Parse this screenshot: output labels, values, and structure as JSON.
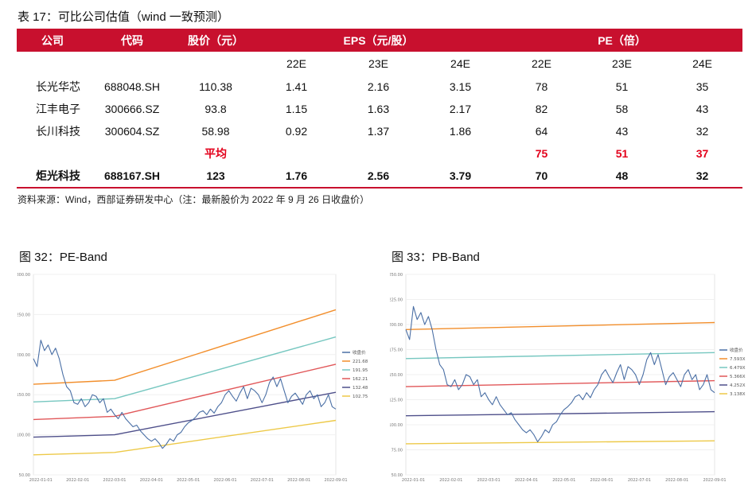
{
  "table": {
    "title": "表 17：可比公司估值（wind 一致预测）",
    "headers": {
      "company": "公司",
      "code": "代码",
      "price": "股价（元）",
      "eps": "EPS（元/股）",
      "pe": "PE（倍）"
    },
    "years": [
      "22E",
      "23E",
      "24E"
    ],
    "rows": [
      {
        "company": "长光华芯",
        "code": "688048.SH",
        "price": "110.38",
        "eps": [
          "1.41",
          "2.16",
          "3.15"
        ],
        "pe": [
          "78",
          "51",
          "35"
        ]
      },
      {
        "company": "江丰电子",
        "code": "300666.SZ",
        "price": "93.8",
        "eps": [
          "1.15",
          "1.63",
          "2.17"
        ],
        "pe": [
          "82",
          "58",
          "43"
        ]
      },
      {
        "company": "长川科技",
        "code": "300604.SZ",
        "price": "58.98",
        "eps": [
          "0.92",
          "1.37",
          "1.86"
        ],
        "pe": [
          "64",
          "43",
          "32"
        ]
      }
    ],
    "average": {
      "label": "平均",
      "pe": [
        "75",
        "51",
        "37"
      ]
    },
    "target": {
      "company": "炬光科技",
      "code": "688167.SH",
      "price": "123",
      "eps": [
        "1.76",
        "2.56",
        "3.79"
      ],
      "pe": [
        "70",
        "48",
        "32"
      ]
    },
    "source": "资料来源：Wind，西部证券研发中心（注：最新股价为 2022 年 9 月 26 日收盘价）"
  },
  "chart_data": [
    {
      "type": "line",
      "title": "图 32：PE-Band",
      "ylim": [
        50,
        300
      ],
      "yticks": [
        "300.00",
        "250.00",
        "200.00",
        "150.00",
        "100.00",
        "50.00"
      ],
      "x_range": [
        0,
        8.2
      ],
      "xticks": [
        {
          "pos": 0.2,
          "label": "2022-01-01"
        },
        {
          "pos": 1.2,
          "label": "2022-02-01"
        },
        {
          "pos": 2.2,
          "label": "2022-03-01"
        },
        {
          "pos": 3.2,
          "label": "2022-04-01"
        },
        {
          "pos": 4.2,
          "label": "2022-05-01"
        },
        {
          "pos": 5.2,
          "label": "2022-06-01"
        },
        {
          "pos": 6.2,
          "label": "2022-07-01"
        },
        {
          "pos": 7.2,
          "label": "2022-08-01"
        },
        {
          "pos": 8.2,
          "label": "2022-09-01"
        }
      ],
      "series": [
        {
          "name": "收盘价",
          "color": "#4a6fa5",
          "x": [
            0.0,
            0.1,
            0.2,
            0.3,
            0.4,
            0.5,
            0.6,
            0.7,
            0.8,
            0.9,
            1.0,
            1.1,
            1.2,
            1.3,
            1.4,
            1.5,
            1.6,
            1.7,
            1.8,
            1.9,
            2.0,
            2.1,
            2.2,
            2.3,
            2.4,
            2.5,
            2.6,
            2.7,
            2.8,
            2.9,
            3.0,
            3.1,
            3.2,
            3.3,
            3.4,
            3.5,
            3.6,
            3.7,
            3.8,
            3.9,
            4.0,
            4.1,
            4.2,
            4.3,
            4.4,
            4.5,
            4.6,
            4.7,
            4.8,
            4.9,
            5.0,
            5.1,
            5.2,
            5.3,
            5.4,
            5.5,
            5.6,
            5.7,
            5.8,
            5.9,
            6.0,
            6.1,
            6.2,
            6.3,
            6.4,
            6.5,
            6.6,
            6.7,
            6.8,
            6.9,
            7.0,
            7.1,
            7.2,
            7.3,
            7.4,
            7.5,
            7.6,
            7.7,
            7.8,
            7.9,
            8.0,
            8.1,
            8.2
          ],
          "values": [
            195,
            185,
            218,
            205,
            212,
            200,
            208,
            195,
            175,
            160,
            155,
            140,
            138,
            145,
            135,
            140,
            150,
            148,
            140,
            145,
            128,
            132,
            125,
            120,
            128,
            120,
            115,
            110,
            112,
            105,
            100,
            95,
            92,
            95,
            90,
            83,
            88,
            95,
            92,
            100,
            103,
            110,
            115,
            118,
            122,
            128,
            130,
            125,
            132,
            127,
            135,
            140,
            150,
            155,
            148,
            142,
            152,
            160,
            145,
            158,
            155,
            150,
            140,
            150,
            165,
            172,
            160,
            170,
            155,
            140,
            148,
            152,
            145,
            138,
            150,
            155,
            145,
            150,
            135,
            140,
            150,
            135,
            132
          ]
        },
        {
          "name": "221.681X",
          "color": "#f28e2b",
          "x": [
            0,
            2.2,
            8.2
          ],
          "values": [
            163,
            168,
            256
          ]
        },
        {
          "name": "191.950X",
          "color": "#76c7c0",
          "x": [
            0,
            2.2,
            8.2
          ],
          "values": [
            141,
            145,
            222
          ]
        },
        {
          "name": "162.219X",
          "color": "#e15759",
          "x": [
            0,
            2.2,
            8.2
          ],
          "values": [
            119,
            123,
            188
          ]
        },
        {
          "name": "132.488X",
          "color": "#4e4f8a",
          "x": [
            0,
            2.2,
            8.2
          ],
          "values": [
            97,
            100,
            153
          ]
        },
        {
          "name": "102.757X",
          "color": "#edc948",
          "x": [
            0,
            2.2,
            8.2
          ],
          "values": [
            75,
            78,
            118
          ]
        }
      ]
    },
    {
      "type": "line",
      "title": "图 33：PB-Band",
      "ylim": [
        50,
        250
      ],
      "yticks": [
        "250.00",
        "225.00",
        "200.00",
        "175.00",
        "150.00",
        "125.00",
        "100.00",
        "75.00",
        "50.00"
      ],
      "x_range": [
        0,
        8.2
      ],
      "xticks": [
        {
          "pos": 0.2,
          "label": "2022-01-01"
        },
        {
          "pos": 1.2,
          "label": "2022-02-01"
        },
        {
          "pos": 2.2,
          "label": "2022-03-01"
        },
        {
          "pos": 3.2,
          "label": "2022-04-01"
        },
        {
          "pos": 4.2,
          "label": "2022-05-01"
        },
        {
          "pos": 5.2,
          "label": "2022-06-01"
        },
        {
          "pos": 6.2,
          "label": "2022-07-01"
        },
        {
          "pos": 7.2,
          "label": "2022-08-01"
        },
        {
          "pos": 8.2,
          "label": "2022-09-01"
        }
      ],
      "series": [
        {
          "name": "收盘价",
          "color": "#4a6fa5",
          "x": [
            0.0,
            0.1,
            0.2,
            0.3,
            0.4,
            0.5,
            0.6,
            0.7,
            0.8,
            0.9,
            1.0,
            1.1,
            1.2,
            1.3,
            1.4,
            1.5,
            1.6,
            1.7,
            1.8,
            1.9,
            2.0,
            2.1,
            2.2,
            2.3,
            2.4,
            2.5,
            2.6,
            2.7,
            2.8,
            2.9,
            3.0,
            3.1,
            3.2,
            3.3,
            3.4,
            3.5,
            3.6,
            3.7,
            3.8,
            3.9,
            4.0,
            4.1,
            4.2,
            4.3,
            4.4,
            4.5,
            4.6,
            4.7,
            4.8,
            4.9,
            5.0,
            5.1,
            5.2,
            5.3,
            5.4,
            5.5,
            5.6,
            5.7,
            5.8,
            5.9,
            6.0,
            6.1,
            6.2,
            6.3,
            6.4,
            6.5,
            6.6,
            6.7,
            6.8,
            6.9,
            7.0,
            7.1,
            7.2,
            7.3,
            7.4,
            7.5,
            7.6,
            7.7,
            7.8,
            7.9,
            8.0,
            8.1,
            8.2
          ],
          "values": [
            195,
            185,
            218,
            205,
            212,
            200,
            208,
            195,
            175,
            160,
            155,
            140,
            138,
            145,
            135,
            140,
            150,
            148,
            140,
            145,
            128,
            132,
            125,
            120,
            128,
            120,
            115,
            110,
            112,
            105,
            100,
            95,
            92,
            95,
            90,
            83,
            88,
            95,
            92,
            100,
            103,
            110,
            115,
            118,
            122,
            128,
            130,
            125,
            132,
            127,
            135,
            140,
            150,
            155,
            148,
            142,
            152,
            160,
            145,
            158,
            155,
            150,
            140,
            150,
            165,
            172,
            160,
            170,
            155,
            140,
            148,
            152,
            145,
            138,
            150,
            155,
            145,
            150,
            135,
            140,
            150,
            135,
            132
          ]
        },
        {
          "name": "7.593X",
          "color": "#f28e2b",
          "x": [
            0,
            8.2
          ],
          "values": [
            195,
            202
          ]
        },
        {
          "name": "6.479X",
          "color": "#76c7c0",
          "x": [
            0,
            8.2
          ],
          "values": [
            166,
            172
          ]
        },
        {
          "name": "5.366X",
          "color": "#e15759",
          "x": [
            0,
            8.2
          ],
          "values": [
            138,
            144
          ]
        },
        {
          "name": "4.252X",
          "color": "#4e4f8a",
          "x": [
            0,
            8.2
          ],
          "values": [
            109,
            113
          ]
        },
        {
          "name": "3.138X",
          "color": "#edc948",
          "x": [
            0,
            8.2
          ],
          "values": [
            81,
            84
          ]
        }
      ]
    }
  ]
}
